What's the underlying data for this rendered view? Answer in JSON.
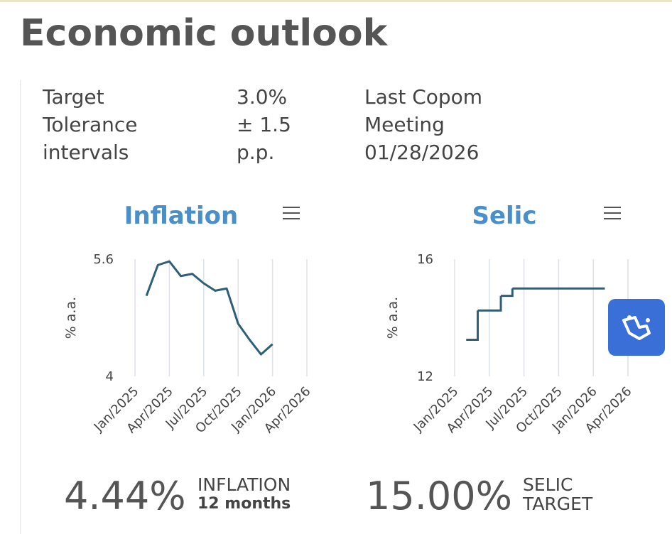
{
  "title": "Economic outlook",
  "info": [
    [
      "Target",
      "Tolerance intervals"
    ],
    [
      "3.0%",
      "± 1.5 p.p."
    ],
    [
      "Last Copom Meeting",
      "01/28/2026"
    ]
  ],
  "chart_data": [
    {
      "type": "line",
      "title": "Inflation",
      "y_label": "% a.a.",
      "color": "#2d5f77",
      "grid": true,
      "x": [
        "2025-02",
        "2025-03",
        "2025-04",
        "2025-05",
        "2025-06",
        "2025-07",
        "2025-08",
        "2025-09",
        "2025-10",
        "2025-11",
        "2025-12",
        "2026-01"
      ],
      "values": [
        5.1,
        5.52,
        5.57,
        5.37,
        5.4,
        5.27,
        5.17,
        5.2,
        4.72,
        4.5,
        4.3,
        4.44
      ],
      "xlim": [
        "2025-01",
        "2026-04"
      ],
      "xticks": [
        {
          "value": "2025-01",
          "label": "Jan/2025"
        },
        {
          "value": "2025-04",
          "label": "Apr/2025"
        },
        {
          "value": "2025-07",
          "label": "Jul/2025"
        },
        {
          "value": "2025-10",
          "label": "Oct/2025"
        },
        {
          "value": "2026-01",
          "label": "Jan/2026"
        },
        {
          "value": "2026-04",
          "label": "Apr/2026"
        }
      ],
      "ylim": [
        4,
        5.6
      ],
      "yticks": [
        5.6,
        4
      ]
    },
    {
      "type": "step",
      "title": "Selic",
      "y_label": "% a.a.",
      "color": "#2d5f77",
      "grid": true,
      "x": [
        "2025-02",
        "2025-03",
        "2025-05",
        "2025-06",
        "2026-02"
      ],
      "values": [
        13.25,
        14.25,
        14.75,
        15,
        15
      ],
      "xlim": [
        "2025-01",
        "2026-04"
      ],
      "xticks": [
        {
          "value": "2025-01",
          "label": "Jan/2025"
        },
        {
          "value": "2025-04",
          "label": "Apr/2025"
        },
        {
          "value": "2025-07",
          "label": "Jul/2025"
        },
        {
          "value": "2025-10",
          "label": "Oct/2025"
        },
        {
          "value": "2026-01",
          "label": "Jan/2026"
        },
        {
          "value": "2026-04",
          "label": "Apr/2026"
        }
      ],
      "ylim": [
        12,
        16
      ],
      "yticks": [
        16,
        12
      ]
    }
  ],
  "summaries": [
    {
      "value": "4.44%",
      "label": "INFLATION",
      "sublabel": "12 months"
    },
    {
      "value": "15.00%",
      "label": "SELIC",
      "sublabel": "TARGET"
    }
  ]
}
